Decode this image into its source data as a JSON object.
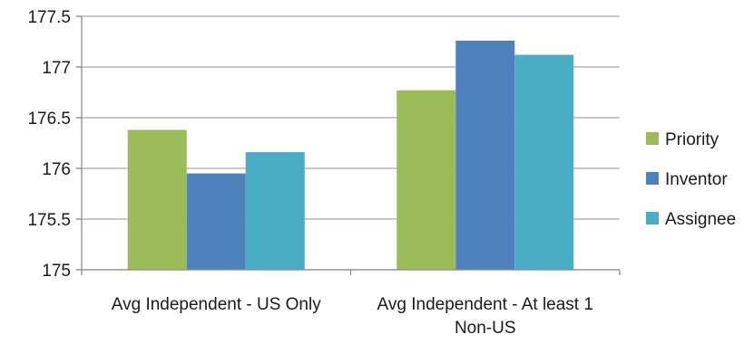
{
  "chart_data": {
    "type": "bar",
    "categories": [
      [
        "Avg Independent - US Only"
      ],
      [
        "Avg Independent - At least 1",
        "Non-US"
      ]
    ],
    "series": [
      {
        "name": "Priority",
        "color": "#9bbb59",
        "values": [
          176.38,
          176.77
        ]
      },
      {
        "name": "Inventor",
        "color": "#4f81bd",
        "values": [
          175.95,
          177.26
        ]
      },
      {
        "name": "Assignee",
        "color": "#4bacc6",
        "values": [
          176.16,
          177.12
        ]
      }
    ],
    "ylim": [
      175,
      177.5
    ],
    "yticks": [
      "175",
      "175.5",
      "176",
      "176.5",
      "177",
      "177.5"
    ],
    "ytick_values": [
      175,
      175.5,
      176,
      176.5,
      177,
      177.5
    ],
    "grid": true,
    "legend": "right",
    "title": "",
    "xlabel": "",
    "ylabel": ""
  }
}
